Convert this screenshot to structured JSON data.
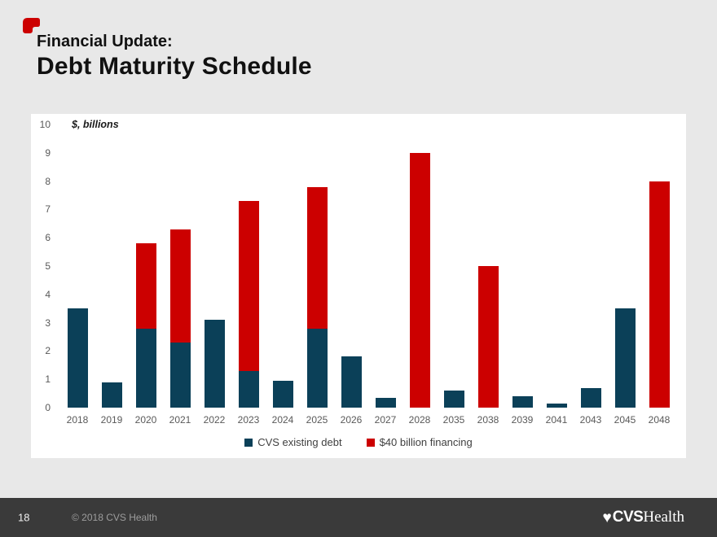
{
  "slide": {
    "header": {
      "kicker": "Financial Update:",
      "title": "Debt Maturity Schedule"
    },
    "footer": {
      "page_number": "18",
      "copyright": "© 2018 CVS Health",
      "logo": {
        "heart": "♥",
        "cvs": "CVS",
        "health": "Health"
      }
    }
  },
  "chart_data": {
    "type": "bar",
    "stacked": true,
    "title": "",
    "units_label": "$, billions",
    "categories": [
      "2018",
      "2019",
      "2020",
      "2021",
      "2022",
      "2023",
      "2024",
      "2025",
      "2026",
      "2027",
      "2028",
      "2035",
      "2038",
      "2039",
      "2041",
      "2043",
      "2045",
      "2048"
    ],
    "series": [
      {
        "name": "CVS existing debt",
        "color": "#0b4058",
        "values": [
          3.5,
          0.9,
          2.8,
          2.3,
          3.1,
          1.3,
          0.95,
          2.8,
          1.8,
          0.35,
          0,
          0.6,
          0,
          0.4,
          0.15,
          0.7,
          3.5,
          0
        ]
      },
      {
        "name": "$40 billion financing",
        "color": "#cc0000",
        "values": [
          0,
          0,
          3,
          4,
          0,
          6,
          0,
          5,
          0,
          0,
          9,
          0,
          5,
          0,
          0,
          0,
          0,
          8
        ]
      }
    ],
    "ylabel": "",
    "xlabel": "",
    "ylim": [
      0,
      10
    ],
    "yticks": [
      0,
      1,
      2,
      3,
      4,
      5,
      6,
      7,
      8,
      9,
      10
    ],
    "grid": false,
    "legend_position": "bottom",
    "accent_colors": {
      "red": "#cc0000",
      "dark_blue": "#0b4058"
    }
  }
}
